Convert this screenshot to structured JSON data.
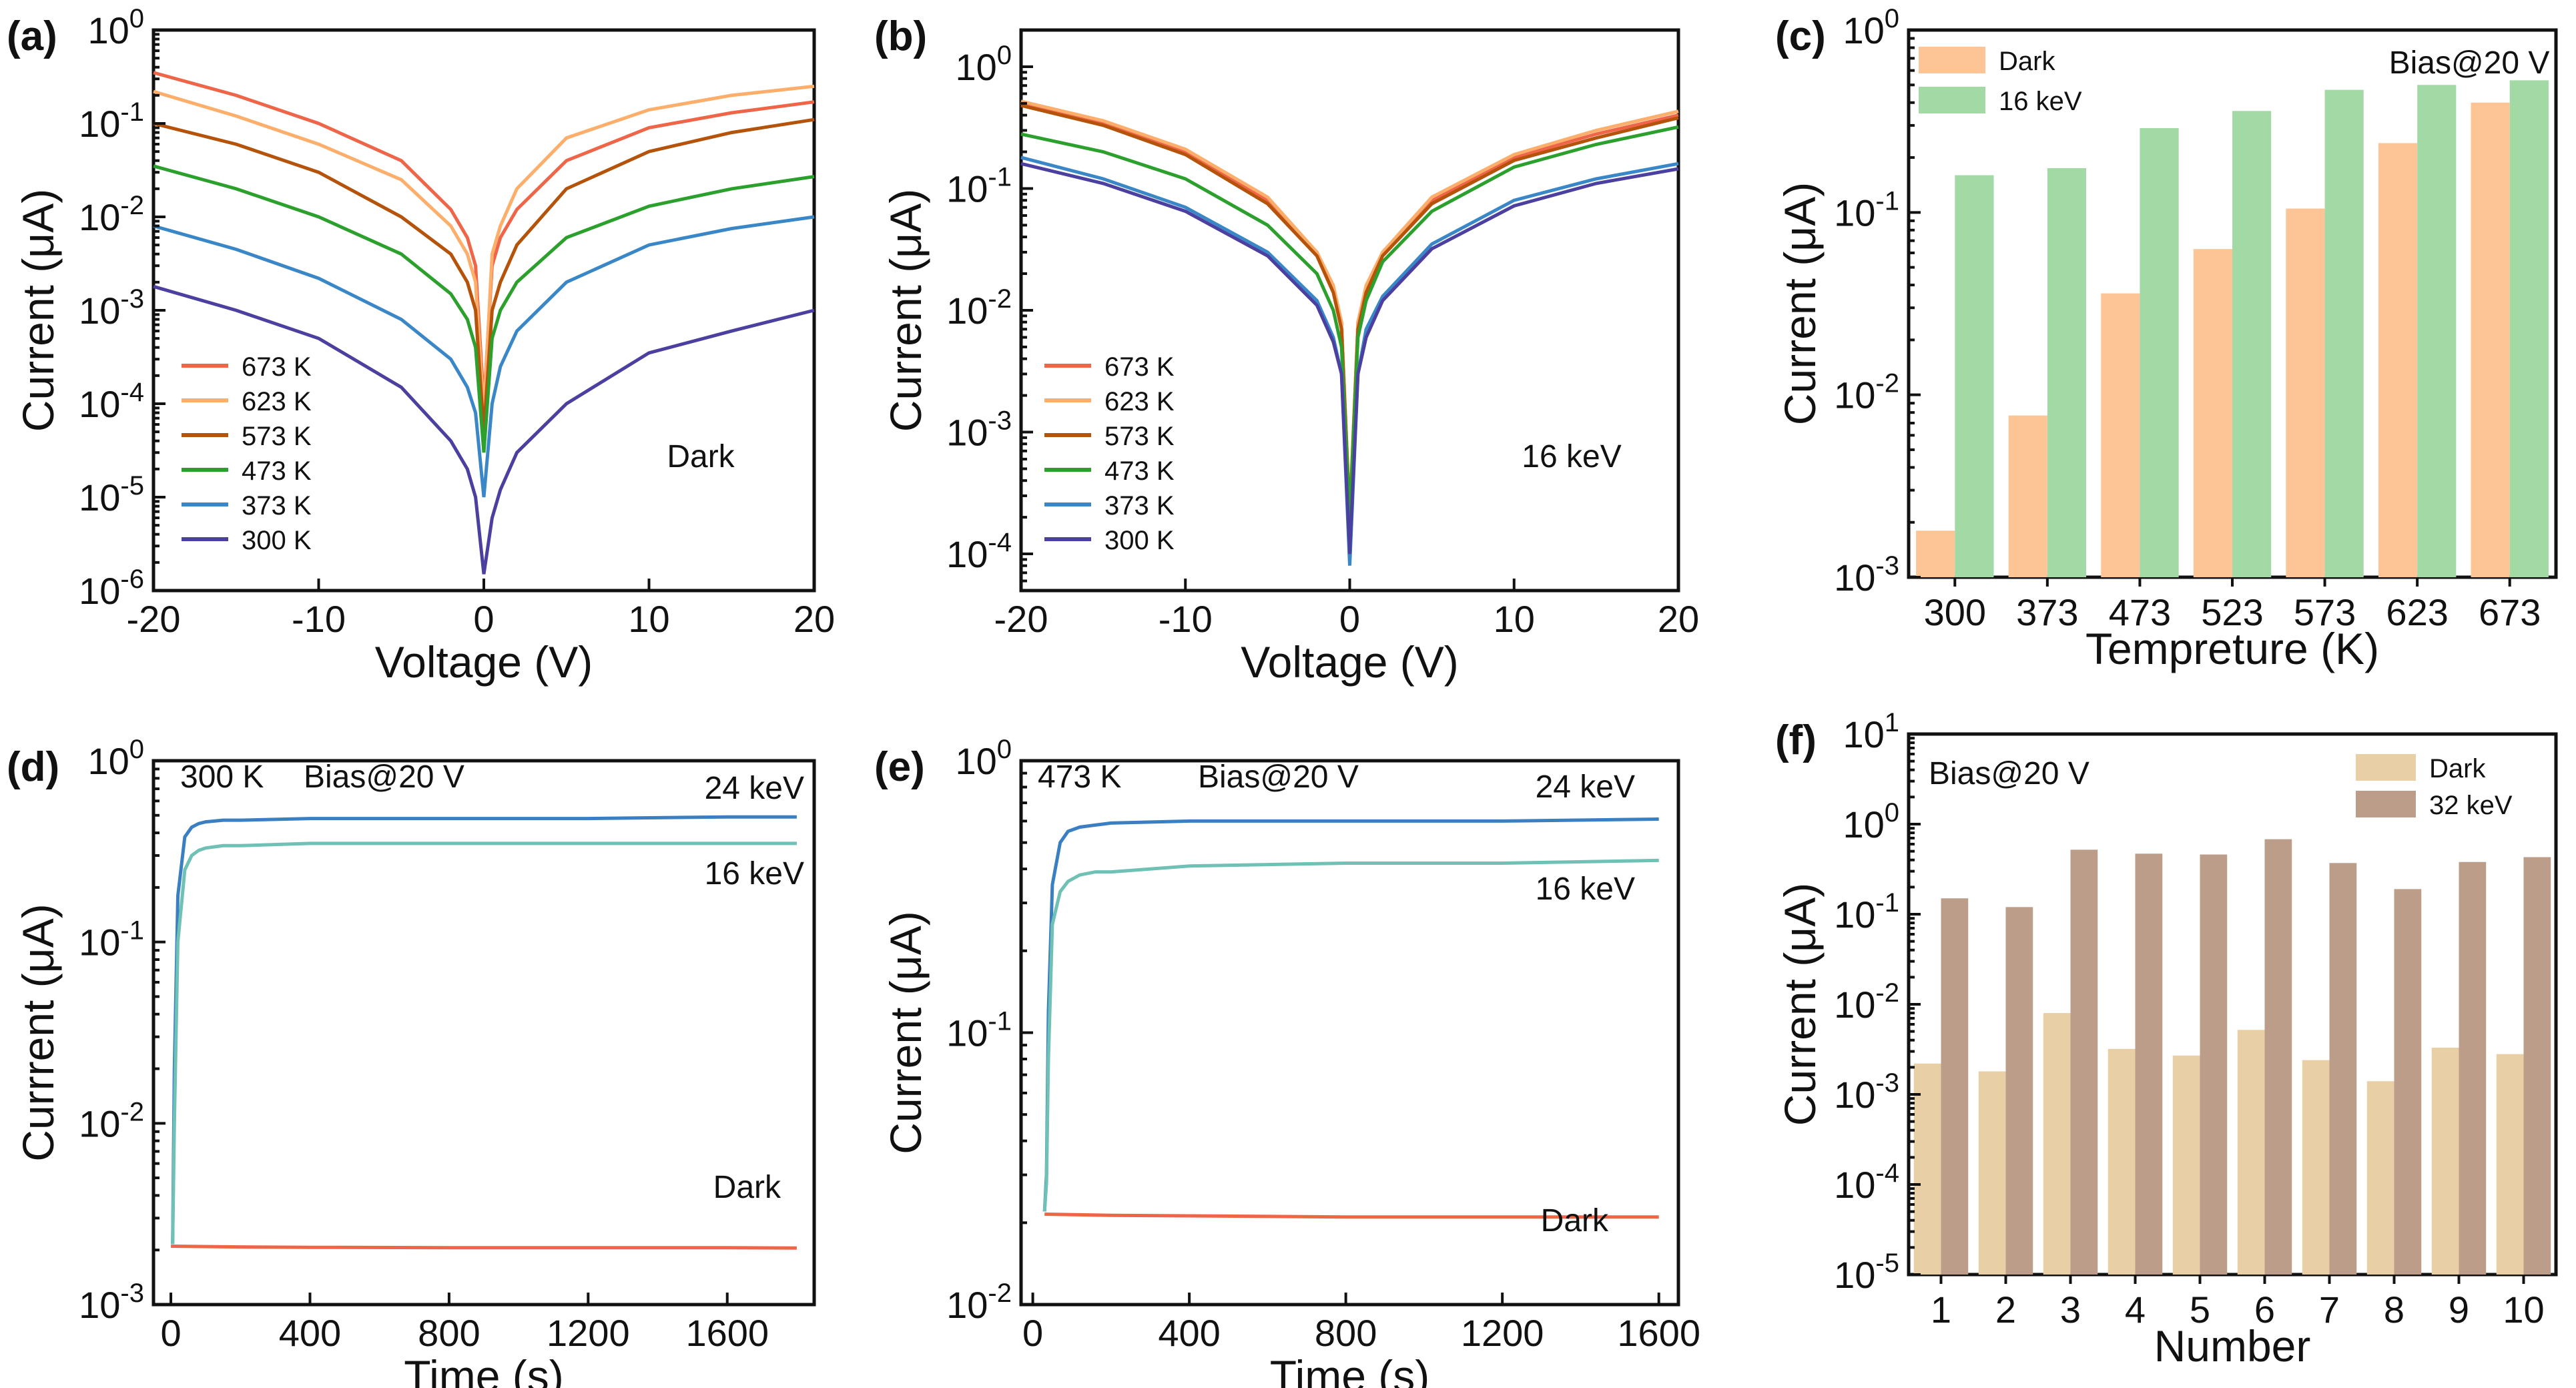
{
  "figure": {
    "title": "Six-panel current measurement figure"
  },
  "chart_data": [
    {
      "id": "a",
      "label": "(a)",
      "type": "line",
      "scale_y": "log",
      "xlabel": "Voltage (V)",
      "ylabel": "Current (μA)",
      "xlim": [
        -20,
        20
      ],
      "ylim": [
        1e-06,
        1
      ],
      "xticks": [
        -20,
        -10,
        0,
        10,
        20
      ],
      "annotation": "Dark",
      "series": [
        {
          "name": "673 K",
          "color": "#ef6548",
          "neg_end": 0.35,
          "pos_end": 0.17,
          "min": 0.0001,
          "x": [
            -20,
            -15,
            -10,
            -5,
            -2,
            -1,
            -0.5,
            0,
            0.5,
            1,
            2,
            5,
            10,
            15,
            20
          ],
          "values": [
            0.35,
            0.2,
            0.1,
            0.04,
            0.012,
            0.006,
            0.003,
            0.0001,
            0.003,
            0.006,
            0.012,
            0.04,
            0.09,
            0.13,
            0.17
          ]
        },
        {
          "name": "623 K",
          "color": "#fdae6b",
          "neg_end": 0.22,
          "pos_end": 0.25,
          "min": 8e-05,
          "x": [
            -20,
            -15,
            -10,
            -5,
            -2,
            -1,
            -0.5,
            0,
            0.5,
            1,
            2,
            5,
            10,
            15,
            20
          ],
          "values": [
            0.22,
            0.12,
            0.06,
            0.025,
            0.008,
            0.004,
            0.002,
            8e-05,
            0.004,
            0.008,
            0.02,
            0.07,
            0.14,
            0.2,
            0.25
          ]
        },
        {
          "name": "573 K",
          "color": "#b45309",
          "neg_end": 0.1,
          "pos_end": 0.11,
          "min": 5e-05,
          "x": [
            -20,
            -15,
            -10,
            -5,
            -2,
            -1,
            -0.5,
            0,
            0.5,
            1,
            2,
            5,
            10,
            15,
            20
          ],
          "values": [
            0.1,
            0.06,
            0.03,
            0.01,
            0.004,
            0.002,
            0.001,
            5e-05,
            0.001,
            0.002,
            0.005,
            0.02,
            0.05,
            0.08,
            0.11
          ]
        },
        {
          "name": "473 K",
          "color": "#2ca02c",
          "neg_end": 0.035,
          "pos_end": 0.027,
          "min": 3e-05,
          "x": [
            -20,
            -15,
            -10,
            -5,
            -2,
            -1,
            -0.5,
            0,
            0.5,
            1,
            2,
            5,
            10,
            15,
            20
          ],
          "values": [
            0.035,
            0.02,
            0.01,
            0.004,
            0.0015,
            0.0008,
            0.0004,
            3e-05,
            0.0005,
            0.001,
            0.002,
            0.006,
            0.013,
            0.02,
            0.027
          ]
        },
        {
          "name": "373 K",
          "color": "#3a87c8",
          "neg_end": 0.008,
          "pos_end": 0.01,
          "min": 1e-05,
          "x": [
            -20,
            -15,
            -10,
            -5,
            -2,
            -1,
            -0.5,
            0,
            0.5,
            1,
            2,
            5,
            10,
            15,
            20
          ],
          "values": [
            0.008,
            0.0045,
            0.0022,
            0.0008,
            0.0003,
            0.00015,
            8e-05,
            1e-05,
            0.0001,
            0.00025,
            0.0006,
            0.002,
            0.005,
            0.0075,
            0.01
          ]
        },
        {
          "name": "300 K",
          "color": "#4b3f9f",
          "neg_end": 0.0018,
          "pos_end": 0.001,
          "min": 1.5e-06,
          "x": [
            -20,
            -15,
            -10,
            -5,
            -2,
            -1,
            -0.5,
            0,
            0.5,
            1,
            2,
            5,
            10,
            15,
            20
          ],
          "values": [
            0.0018,
            0.001,
            0.0005,
            0.00015,
            4e-05,
            2e-05,
            1e-05,
            1.5e-06,
            6e-06,
            1.2e-05,
            3e-05,
            0.0001,
            0.00035,
            0.0006,
            0.001
          ]
        }
      ]
    },
    {
      "id": "b",
      "label": "(b)",
      "type": "line",
      "scale_y": "log",
      "xlabel": "Voltage (V)",
      "ylabel": "Current (μA)",
      "xlim": [
        -20,
        20
      ],
      "ylim": [
        5e-05,
        2
      ],
      "xticks": [
        -20,
        -10,
        0,
        10,
        20
      ],
      "annotation": "16 keV",
      "series": [
        {
          "name": "673 K",
          "color": "#ef6548",
          "x": [
            -20,
            -15,
            -10,
            -5,
            -2,
            -1,
            -0.5,
            0,
            0.5,
            1,
            2,
            5,
            10,
            15,
            20
          ],
          "values": [
            0.5,
            0.35,
            0.2,
            0.08,
            0.03,
            0.015,
            0.008,
            0.0002,
            0.008,
            0.015,
            0.03,
            0.08,
            0.18,
            0.28,
            0.4
          ]
        },
        {
          "name": "623 K",
          "color": "#fdae6b",
          "x": [
            -20,
            -15,
            -10,
            -5,
            -2,
            -1,
            -0.5,
            0,
            0.5,
            1,
            2,
            5,
            10,
            15,
            20
          ],
          "values": [
            0.52,
            0.36,
            0.21,
            0.085,
            0.03,
            0.016,
            0.008,
            0.0002,
            0.008,
            0.016,
            0.03,
            0.085,
            0.19,
            0.3,
            0.43
          ]
        },
        {
          "name": "573 K",
          "color": "#b45309",
          "x": [
            -20,
            -15,
            -10,
            -5,
            -2,
            -1,
            -0.5,
            0,
            0.5,
            1,
            2,
            5,
            10,
            15,
            20
          ],
          "values": [
            0.48,
            0.33,
            0.19,
            0.075,
            0.028,
            0.014,
            0.007,
            0.0002,
            0.007,
            0.014,
            0.028,
            0.075,
            0.17,
            0.26,
            0.38
          ]
        },
        {
          "name": "473 K",
          "color": "#2ca02c",
          "x": [
            -20,
            -15,
            -10,
            -5,
            -2,
            -1,
            -0.5,
            0,
            0.5,
            1,
            2,
            5,
            10,
            15,
            20
          ],
          "values": [
            0.28,
            0.2,
            0.12,
            0.05,
            0.02,
            0.01,
            0.005,
            0.0002,
            0.006,
            0.012,
            0.025,
            0.065,
            0.15,
            0.23,
            0.32
          ]
        },
        {
          "name": "373 K",
          "color": "#3a87c8",
          "x": [
            -20,
            -15,
            -10,
            -5,
            -2,
            -1,
            -0.5,
            0,
            0.5,
            1,
            2,
            5,
            10,
            15,
            20
          ],
          "values": [
            0.18,
            0.12,
            0.07,
            0.03,
            0.012,
            0.006,
            0.003,
            8e-05,
            0.003,
            0.007,
            0.013,
            0.035,
            0.08,
            0.12,
            0.16
          ]
        },
        {
          "name": "300 K",
          "color": "#4b3f9f",
          "x": [
            -20,
            -15,
            -10,
            -5,
            -2,
            -1,
            -0.5,
            0,
            0.5,
            1,
            2,
            5,
            10,
            15,
            20
          ],
          "values": [
            0.16,
            0.11,
            0.065,
            0.028,
            0.011,
            0.0055,
            0.003,
            0.0001,
            0.003,
            0.006,
            0.012,
            0.032,
            0.072,
            0.11,
            0.145
          ]
        }
      ]
    },
    {
      "id": "c",
      "label": "(c)",
      "type": "bar",
      "scale_y": "log",
      "xlabel": "Tempreture (K)",
      "ylabel": "Current (μA)",
      "ylim": [
        0.001,
        1
      ],
      "categories": [
        "300",
        "373",
        "473",
        "523",
        "573",
        "623",
        "673"
      ],
      "annotation": "Bias@20 V",
      "series": [
        {
          "name": "Dark",
          "color": "#fdc596",
          "values": [
            0.0018,
            0.0077,
            0.036,
            0.063,
            0.105,
            0.24,
            0.4
          ]
        },
        {
          "name": "16 keV",
          "color": "#a3d9a5",
          "values": [
            0.16,
            0.175,
            0.29,
            0.36,
            0.47,
            0.5,
            0.53
          ]
        }
      ]
    },
    {
      "id": "d",
      "label": "(d)",
      "type": "line",
      "scale_y": "log",
      "xlabel": "Time (s)",
      "ylabel": "Currrent (μA)",
      "xlim": [
        -50,
        1850
      ],
      "ylim": [
        0.001,
        1
      ],
      "xticks": [
        0,
        400,
        800,
        1200,
        1600
      ],
      "annotations": [
        "300 K",
        "Bias@20 V"
      ],
      "series": [
        {
          "name": "24 keV",
          "color": "#3a7fc1",
          "x": [
            0,
            5,
            10,
            20,
            40,
            60,
            80,
            100,
            150,
            200,
            400,
            800,
            1200,
            1600,
            1800
          ],
          "values": [
            0.0022,
            0.0022,
            0.02,
            0.18,
            0.38,
            0.43,
            0.45,
            0.46,
            0.47,
            0.47,
            0.48,
            0.48,
            0.48,
            0.49,
            0.49
          ]
        },
        {
          "name": "16 keV",
          "color": "#6fc0b5",
          "x": [
            0,
            5,
            10,
            20,
            40,
            60,
            80,
            100,
            150,
            200,
            400,
            800,
            1200,
            1600,
            1800
          ],
          "values": [
            0.0022,
            0.0022,
            0.01,
            0.1,
            0.25,
            0.3,
            0.32,
            0.33,
            0.34,
            0.34,
            0.35,
            0.35,
            0.35,
            0.35,
            0.35
          ]
        },
        {
          "name": "Dark",
          "color": "#ef6548",
          "x": [
            0,
            200,
            400,
            800,
            1200,
            1600,
            1800
          ],
          "values": [
            0.0021,
            0.00208,
            0.00207,
            0.00206,
            0.00206,
            0.00206,
            0.00205
          ]
        }
      ]
    },
    {
      "id": "e",
      "label": "(e)",
      "type": "line",
      "scale_y": "log",
      "xlabel": "Time (s)",
      "ylabel": "Current (μA)",
      "xlim": [
        -30,
        1650
      ],
      "ylim": [
        0.01,
        1
      ],
      "xticks": [
        0,
        400,
        800,
        1200,
        1600
      ],
      "annotations": [
        "473 K",
        "Bias@20 V"
      ],
      "series": [
        {
          "name": "24 keV",
          "color": "#3a7fc1",
          "x": [
            30,
            35,
            40,
            50,
            70,
            90,
            120,
            160,
            200,
            400,
            800,
            1200,
            1600
          ],
          "values": [
            0.022,
            0.03,
            0.12,
            0.35,
            0.5,
            0.55,
            0.57,
            0.58,
            0.59,
            0.6,
            0.6,
            0.6,
            0.61
          ]
        },
        {
          "name": "16 keV",
          "color": "#6fc0b5",
          "x": [
            30,
            35,
            40,
            50,
            70,
            90,
            120,
            160,
            200,
            400,
            800,
            1200,
            1600
          ],
          "values": [
            0.022,
            0.028,
            0.08,
            0.25,
            0.33,
            0.36,
            0.38,
            0.39,
            0.39,
            0.41,
            0.42,
            0.42,
            0.43
          ]
        },
        {
          "name": "Dark",
          "color": "#ef6548",
          "x": [
            30,
            200,
            400,
            800,
            1200,
            1600
          ],
          "values": [
            0.0215,
            0.0213,
            0.0212,
            0.021,
            0.021,
            0.021
          ]
        }
      ]
    },
    {
      "id": "f",
      "label": "(f)",
      "type": "bar",
      "scale_y": "log",
      "xlabel": "Number",
      "ylabel": "Current (μA)",
      "ylim": [
        1e-05,
        10
      ],
      "categories": [
        "1",
        "2",
        "3",
        "4",
        "5",
        "6",
        "7",
        "8",
        "9",
        "10"
      ],
      "annotation": "Bias@20 V",
      "series": [
        {
          "name": "Dark",
          "color": "#e8cfa5",
          "values": [
            0.0022,
            0.0018,
            0.008,
            0.0032,
            0.0027,
            0.0052,
            0.0024,
            0.0014,
            0.0033,
            0.0028
          ]
        },
        {
          "name": "32 keV",
          "color": "#bb9d89",
          "values": [
            0.15,
            0.12,
            0.52,
            0.47,
            0.46,
            0.68,
            0.37,
            0.19,
            0.38,
            0.43
          ]
        }
      ]
    }
  ],
  "tick_labels": {
    "a_y": [
      "10",
      "10",
      "10",
      "10",
      "10",
      "10",
      "10"
    ],
    "a_y_exp": [
      "0",
      "-1",
      "-2",
      "-3",
      "-4",
      "-5",
      "-6"
    ]
  }
}
